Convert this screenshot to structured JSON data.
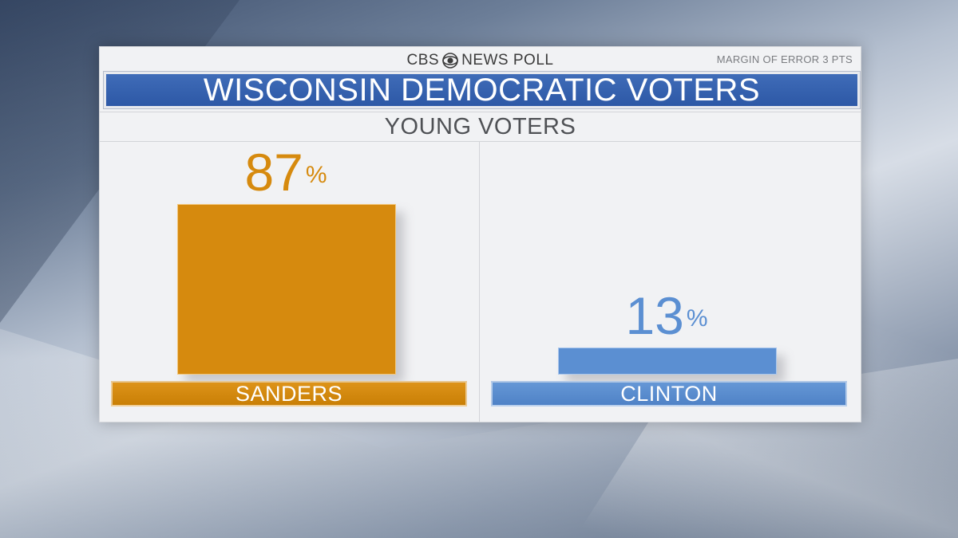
{
  "header": {
    "brand_left": "CBS",
    "brand_right": "NEWS POLL",
    "brand_icon": "cbs-eye-icon",
    "margin_of_error": "MARGIN OF ERROR 3 PTS",
    "title": "WISCONSIN DEMOCRATIC VOTERS",
    "subtitle": "YOUNG VOTERS"
  },
  "chart_data": {
    "type": "bar",
    "title": "WISCONSIN DEMOCRATIC VOTERS",
    "subtitle": "YOUNG VOTERS",
    "categories": [
      "SANDERS",
      "CLINTON"
    ],
    "values": [
      87,
      13
    ],
    "value_labels": [
      "87",
      "13"
    ],
    "unit": "%",
    "ylim": [
      0,
      87
    ],
    "grid": false,
    "legend": "none",
    "colors": [
      "#d68a0e",
      "#5b8fd2"
    ]
  }
}
